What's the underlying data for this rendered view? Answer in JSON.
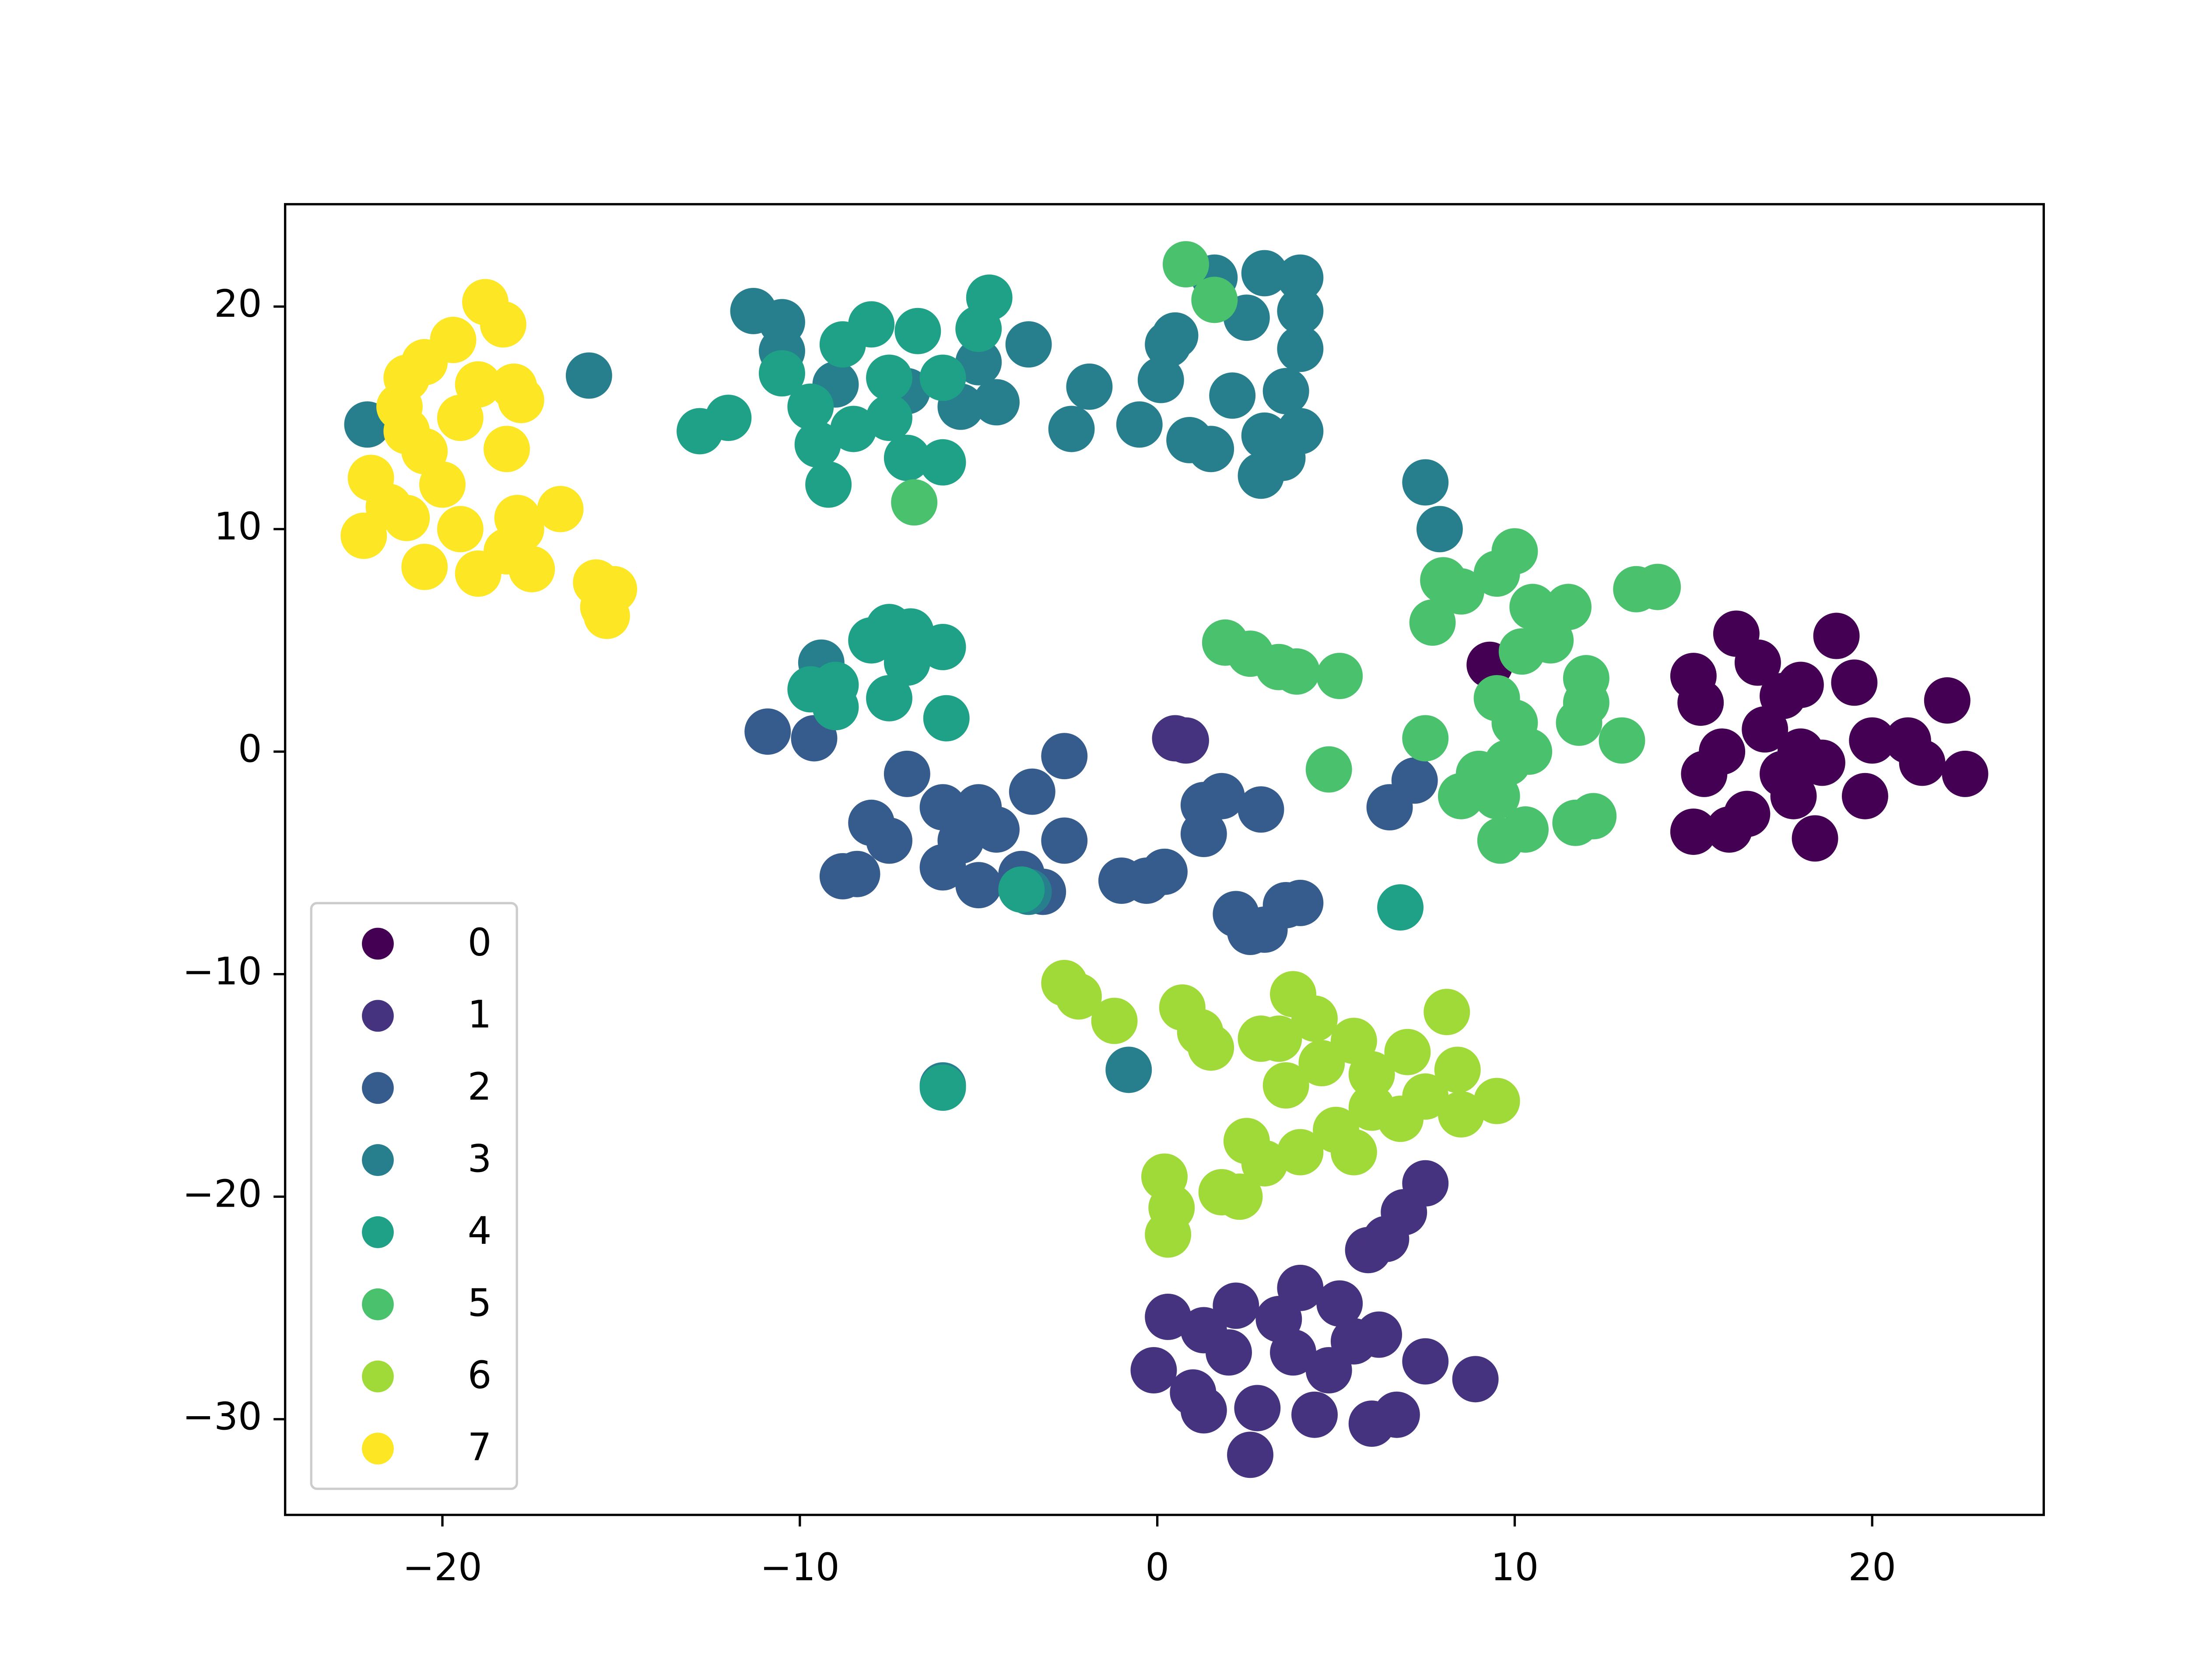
{
  "chart_data": {
    "type": "scatter",
    "xlim": [
      -24.4,
      24.8
    ],
    "ylim": [
      -34.3,
      24.6
    ],
    "xticks": [
      {
        "value": -20,
        "label": "−20"
      },
      {
        "value": -10,
        "label": "−10"
      },
      0,
      10,
      20
    ],
    "yticks": [
      {
        "value": -30,
        "label": "−30"
      },
      {
        "value": -20,
        "label": "−20"
      },
      {
        "value": -10,
        "label": "−10"
      },
      0,
      10,
      20
    ],
    "legend": "lower left",
    "series": [
      {
        "name": "0",
        "color": "#440154",
        "x": [
          16.2,
          15.0,
          15.2,
          16.8,
          17.5,
          18.0,
          19.0,
          19.5,
          20.0,
          21.0,
          22.1,
          22.6,
          21.4,
          19.8,
          18.4,
          16.0,
          15.0,
          15.3,
          16.5,
          17.5,
          18.0,
          17.0,
          15.8,
          9.3,
          18.6,
          17.8
        ],
        "y": [
          5.3,
          3.4,
          2.2,
          4.0,
          2.5,
          3.0,
          5.2,
          3.1,
          0.5,
          0.5,
          2.3,
          -1.0,
          -0.5,
          -2.0,
          -3.9,
          -3.5,
          -3.6,
          -1.0,
          -2.8,
          -1.0,
          0.0,
          1.0,
          0.0,
          3.9,
          -0.5,
          -2.0
        ]
      },
      {
        "name": "1",
        "color": "#46337f",
        "x": [
          0.5,
          0.8,
          8.9,
          7.5,
          6.9,
          5.9,
          6.4,
          0.3,
          -0.1,
          1.3,
          2.2,
          3.4,
          4.0,
          5.1,
          6.2,
          7.5,
          6.7,
          6.0,
          4.4,
          2.6,
          2.8,
          1.3,
          1.0,
          3.8,
          4.8,
          5.5,
          2.0
        ],
        "y": [
          0.6,
          0.5,
          -28.2,
          -19.4,
          -20.7,
          -22.4,
          -21.9,
          -25.4,
          -27.8,
          -26.0,
          -24.9,
          -25.5,
          -24.1,
          -24.8,
          -26.2,
          -27.4,
          -29.8,
          -30.2,
          -29.8,
          -31.6,
          -29.5,
          -29.6,
          -28.8,
          -27.0,
          -27.8,
          -26.5,
          -27.0
        ]
      },
      {
        "name": "2",
        "color": "#365c8d",
        "x": [
          -10.9,
          -9.6,
          -2.6,
          -3.5,
          -2.6,
          -7.0,
          -8.0,
          -7.5,
          -6.0,
          -5.0,
          -4.5,
          -6.0,
          -5.0,
          -3.8,
          -3.2,
          -8.8,
          -8.4,
          -1.0,
          -0.3,
          0.2,
          1.3,
          1.8,
          1.3,
          2.9,
          2.2,
          2.6,
          3.0,
          3.6,
          4.0,
          6.5,
          7.2,
          -5.5
        ],
        "y": [
          0.9,
          0.6,
          -0.2,
          -1.8,
          -4.0,
          -1.0,
          -3.2,
          -4.0,
          -2.5,
          -2.5,
          -3.5,
          -5.2,
          -6.0,
          -5.5,
          -6.3,
          -5.6,
          -5.5,
          -5.8,
          -5.8,
          -5.4,
          -2.4,
          -2.0,
          -3.7,
          -2.6,
          -7.3,
          -8.1,
          -8.0,
          -6.9,
          -6.8,
          -2.5,
          -1.3,
          -4.0
        ]
      },
      {
        "name": "3",
        "color": "#277f8e",
        "x": [
          -22.1,
          -15.9,
          -11.3,
          -10.5,
          -10.5,
          -9.0,
          -7.0,
          -5.0,
          -4.5,
          -5.5,
          -3.6,
          -2.4,
          -1.9,
          0.1,
          0.3,
          0.5,
          -0.5,
          0.9,
          1.5,
          1.6,
          2.1,
          2.5,
          3.0,
          4.0,
          4.0,
          4.0,
          3.6,
          3.0,
          3.5,
          2.9,
          4.0,
          7.5,
          7.9,
          -9.4,
          -0.8,
          -3.6,
          -6.0
        ],
        "y": [
          14.7,
          16.9,
          19.8,
          19.3,
          18.0,
          16.5,
          16.2,
          17.5,
          15.7,
          15.5,
          18.3,
          14.5,
          16.4,
          16.7,
          18.3,
          18.7,
          14.7,
          14.0,
          13.6,
          21.3,
          16.0,
          19.5,
          21.5,
          21.3,
          19.8,
          18.1,
          16.2,
          14.2,
          13.2,
          12.4,
          14.4,
          12.1,
          10.0,
          4.0,
          -14.3,
          -6.3,
          -15.0
        ]
      },
      {
        "name": "4",
        "color": "#1fa187",
        "x": [
          -12.8,
          -12.0,
          -10.5,
          -9.7,
          -9.2,
          -9.5,
          -8.8,
          -8.0,
          -8.5,
          -7.5,
          -7.5,
          -6.7,
          -6.0,
          -6.0,
          -7.0,
          -5.0,
          -4.7,
          -8.0,
          -7.5,
          -6.9,
          -6.0,
          -7.0,
          -7.5,
          -9.0,
          -9.7,
          -9.0,
          -5.9,
          -3.8,
          6.8,
          -6.0
        ],
        "y": [
          14.4,
          15.0,
          17.0,
          15.5,
          12.0,
          13.8,
          18.3,
          19.2,
          14.5,
          15.0,
          16.8,
          18.9,
          16.8,
          13.0,
          13.2,
          19.0,
          20.4,
          5.0,
          5.6,
          5.4,
          4.7,
          4.0,
          2.4,
          2.0,
          2.8,
          3.0,
          1.5,
          -6.2,
          -7.0,
          -15.1
        ]
      },
      {
        "name": "5",
        "color": "#4ac16d",
        "x": [
          0.8,
          1.6,
          -6.8,
          7.7,
          8.0,
          8.5,
          9.5,
          10.0,
          10.5,
          11.5,
          11.0,
          10.2,
          11.8,
          12.0,
          12.0,
          13.0,
          13.4,
          14.0,
          9.5,
          10.0,
          9.8,
          9.0,
          8.5,
          9.5,
          7.5,
          9.6,
          10.3,
          11.7,
          12.2,
          1.9,
          2.6,
          3.4,
          3.9,
          5.1,
          4.8,
          10.4
        ],
        "y": [
          21.9,
          20.3,
          11.2,
          5.8,
          7.7,
          7.2,
          8.0,
          9.0,
          6.5,
          6.5,
          5.0,
          4.5,
          1.3,
          2.2,
          3.3,
          0.5,
          7.3,
          7.4,
          2.4,
          1.3,
          -0.5,
          -1.0,
          -2.0,
          -2.0,
          0.6,
          -4.0,
          -3.5,
          -3.2,
          -2.9,
          4.9,
          4.4,
          3.8,
          3.6,
          3.4,
          -0.8,
          0.0
        ]
      },
      {
        "name": "6",
        "color": "#a0da39",
        "x": [
          -2.6,
          -2.2,
          -1.2,
          0.7,
          1.2,
          1.5,
          2.9,
          3.4,
          3.8,
          4.4,
          4.6,
          5.5,
          6.0,
          7.0,
          8.1,
          8.4,
          7.5,
          8.5,
          9.5,
          6.0,
          5.0,
          4.0,
          3.0,
          2.5,
          1.8,
          2.3,
          0.2,
          0.4,
          0.3,
          3.6,
          6.8,
          5.5
        ],
        "y": [
          -10.4,
          -11.0,
          -12.1,
          -11.5,
          -12.6,
          -13.3,
          -12.9,
          -12.9,
          -10.9,
          -12.0,
          -14.0,
          -13.0,
          -14.5,
          -13.5,
          -11.7,
          -14.3,
          -15.5,
          -16.3,
          -15.7,
          -16.0,
          -17.0,
          -18.0,
          -18.5,
          -17.5,
          -19.8,
          -20.0,
          -19.1,
          -20.5,
          -21.7,
          -15.0,
          -16.5,
          -18.0
        ]
      },
      {
        "name": "7",
        "color": "#fde725",
        "x": [
          -18.8,
          -18.3,
          -19.7,
          -20.5,
          -21.0,
          -21.2,
          -21.0,
          -19.5,
          -19.0,
          -18.0,
          -17.8,
          -18.2,
          -20.5,
          -22.0,
          -21.5,
          -22.2,
          -21.0,
          -20.0,
          -20.5,
          -19.5,
          -19.0,
          -18.2,
          -17.8,
          -17.5,
          -16.7,
          -17.9,
          -15.7,
          -15.2,
          -15.5,
          -15.4
        ],
        "y": [
          20.2,
          19.2,
          18.5,
          17.5,
          16.8,
          15.5,
          14.4,
          15.0,
          16.5,
          16.4,
          15.8,
          13.6,
          13.5,
          12.3,
          11.0,
          9.7,
          10.5,
          12.0,
          8.3,
          10.0,
          8.0,
          9.0,
          10.0,
          8.2,
          10.9,
          10.5,
          7.6,
          7.3,
          6.5,
          6.1
        ]
      }
    ]
  }
}
